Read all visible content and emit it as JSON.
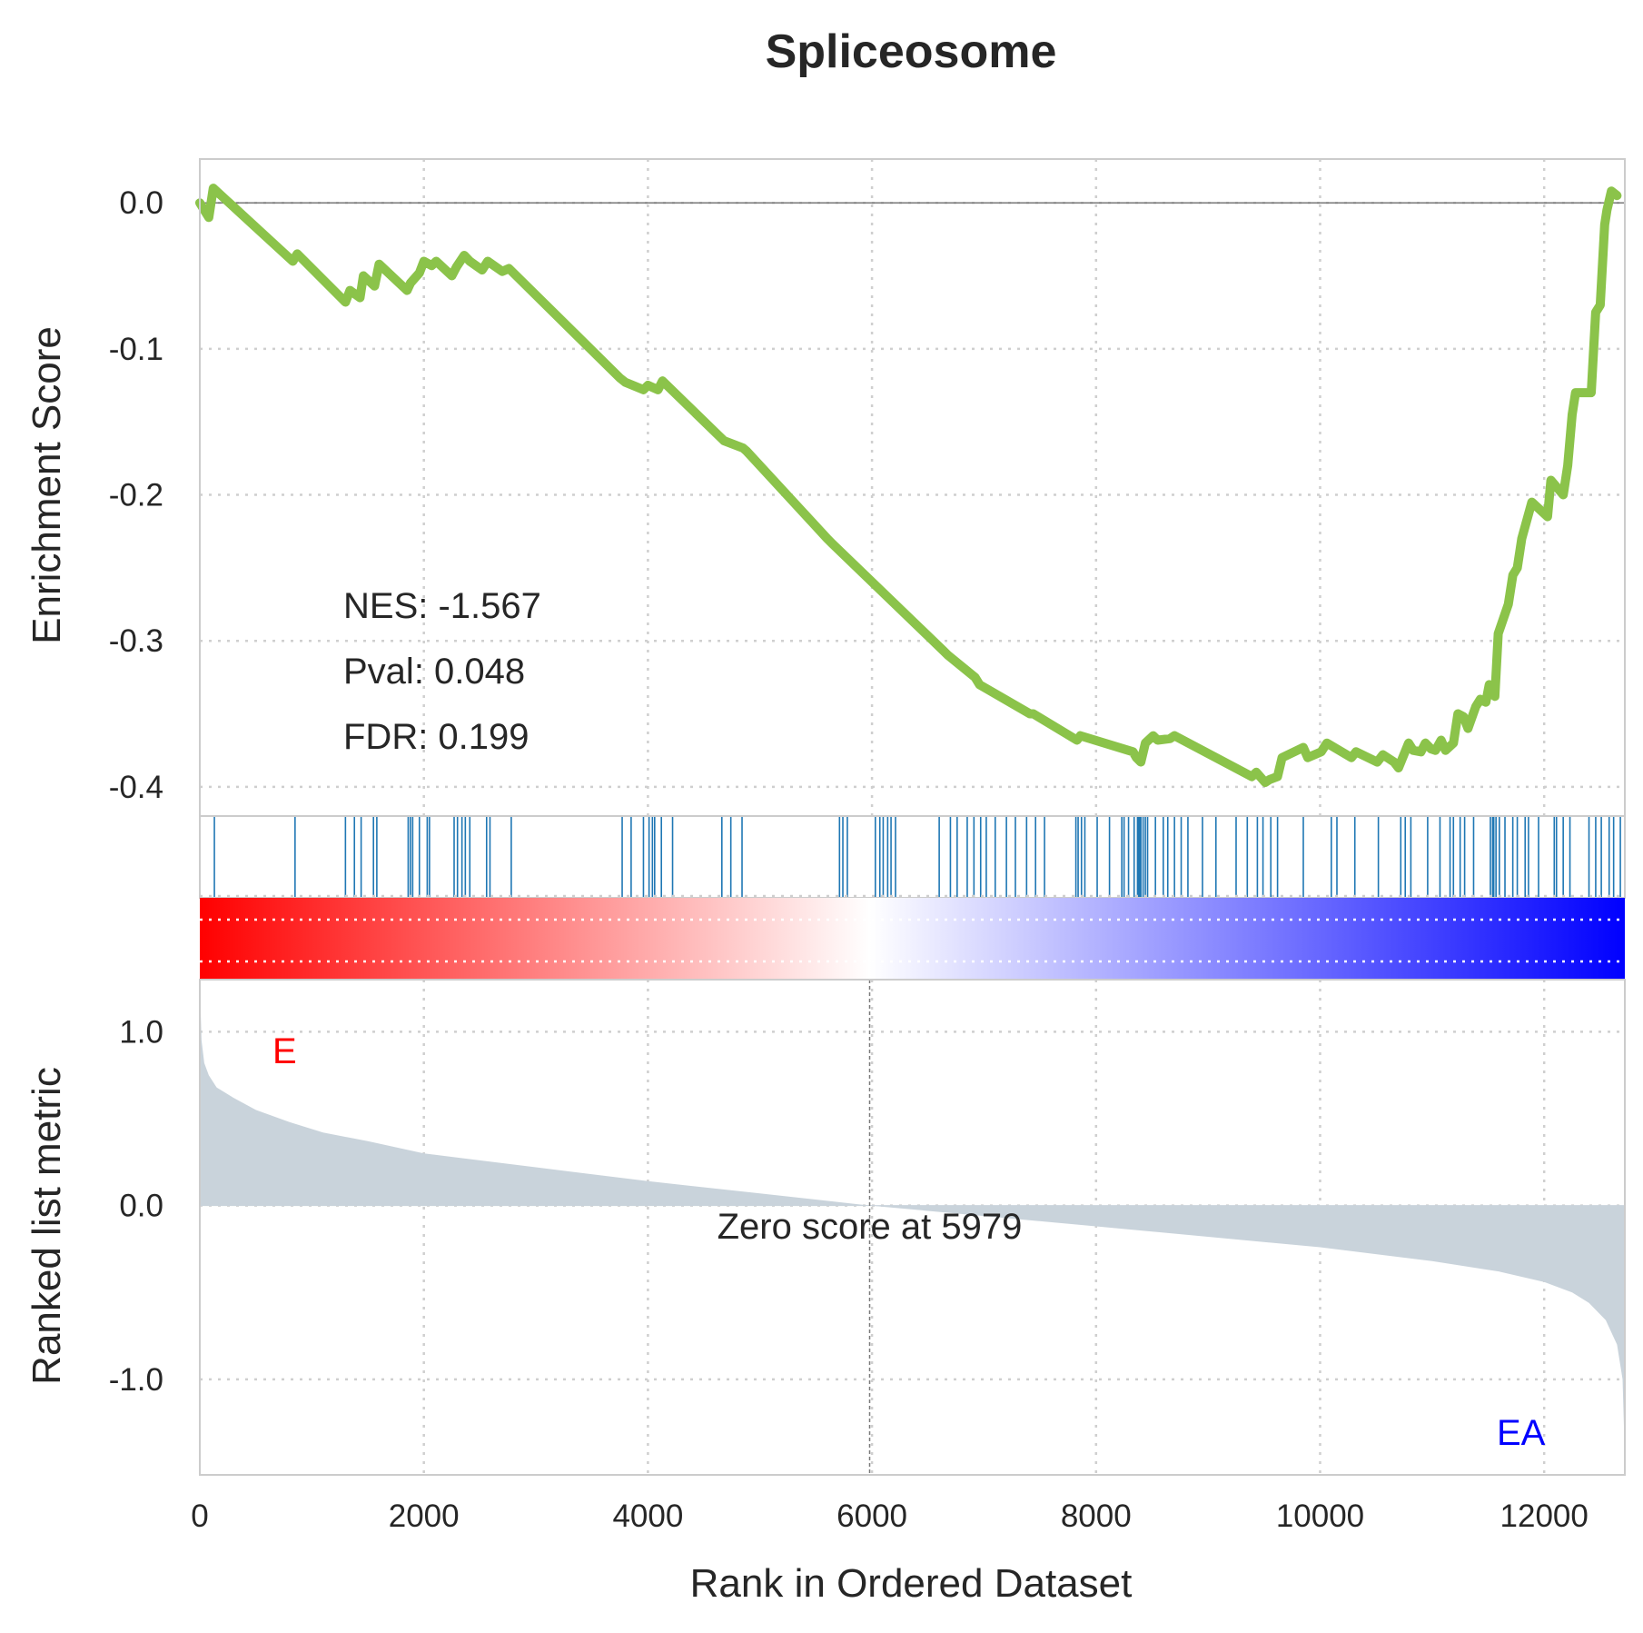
{
  "chart_data": {
    "type": "line",
    "title": "Spliceosome",
    "xlabel": "Rank in Ordered Dataset",
    "xlim": [
      0,
      12720
    ],
    "x_ticks": [
      "0",
      "2000",
      "4000",
      "6000",
      "8000",
      "10000",
      "12000"
    ],
    "x_tick_values": [
      0,
      2000,
      4000,
      6000,
      8000,
      10000,
      12000
    ],
    "grid": true,
    "panels": {
      "enrichment": {
        "ylabel": "Enrichment Score",
        "ylim": [
          -0.42,
          0.03
        ],
        "y_ticks": [
          "0.0",
          "-0.1",
          "-0.2",
          "-0.3",
          "-0.4"
        ],
        "y_tick_values": [
          0.0,
          -0.1,
          -0.2,
          -0.3,
          -0.4
        ],
        "line_color": "#8bc34a",
        "baseline": 0.0,
        "stats": [
          "NES: -1.567",
          "Pval: 0.048",
          "FDR: 0.199"
        ],
        "series": {
          "x": [
            0,
            80,
            120,
            830,
            870,
            1300,
            1340,
            1430,
            1460,
            1560,
            1600,
            1850,
            1880,
            1960,
            2000,
            2070,
            2110,
            2250,
            2290,
            2360,
            2410,
            2520,
            2570,
            2700,
            2760,
            3750,
            3800,
            3960,
            4000,
            4090,
            4130,
            4640,
            4680,
            4850,
            4880,
            5600,
            5640,
            6640,
            6680,
            6920,
            6960,
            7410,
            7440,
            7830,
            7860,
            8330,
            8360,
            8400,
            8440,
            8510,
            8550,
            8660,
            8700,
            9390,
            9430,
            9510,
            9550,
            9620,
            9660,
            9850,
            9890,
            10010,
            10060,
            10280,
            10320,
            10510,
            10560,
            10660,
            10700,
            10790,
            10830,
            10900,
            10940,
            10990,
            11030,
            11080,
            11120,
            11190,
            11230,
            11280,
            11320,
            11390,
            11430,
            11480,
            11510,
            11560,
            11590,
            11680,
            11720,
            11760,
            11800,
            11890,
            12030,
            12060,
            12170,
            12210,
            12250,
            12280,
            12420,
            12460,
            12500,
            12540,
            12560,
            12600,
            12650
          ],
          "y": [
            0.0,
            -0.01,
            0.01,
            -0.04,
            -0.035,
            -0.068,
            -0.06,
            -0.065,
            -0.05,
            -0.057,
            -0.042,
            -0.06,
            -0.055,
            -0.048,
            -0.04,
            -0.043,
            -0.04,
            -0.05,
            -0.044,
            -0.036,
            -0.04,
            -0.046,
            -0.04,
            -0.047,
            -0.045,
            -0.12,
            -0.123,
            -0.128,
            -0.125,
            -0.128,
            -0.122,
            -0.16,
            -0.163,
            -0.168,
            -0.17,
            -0.23,
            -0.233,
            -0.307,
            -0.31,
            -0.325,
            -0.33,
            -0.35,
            -0.35,
            -0.368,
            -0.365,
            -0.376,
            -0.38,
            -0.383,
            -0.37,
            -0.365,
            -0.368,
            -0.367,
            -0.365,
            -0.393,
            -0.39,
            -0.397,
            -0.395,
            -0.393,
            -0.38,
            -0.373,
            -0.38,
            -0.376,
            -0.37,
            -0.38,
            -0.376,
            -0.383,
            -0.378,
            -0.383,
            -0.387,
            -0.37,
            -0.375,
            -0.376,
            -0.37,
            -0.374,
            -0.375,
            -0.368,
            -0.375,
            -0.37,
            -0.35,
            -0.352,
            -0.36,
            -0.345,
            -0.34,
            -0.342,
            -0.33,
            -0.338,
            -0.295,
            -0.275,
            -0.255,
            -0.25,
            -0.23,
            -0.205,
            -0.215,
            -0.19,
            -0.2,
            -0.18,
            -0.145,
            -0.13,
            -0.13,
            -0.075,
            -0.07,
            -0.015,
            -0.005,
            0.008,
            0.005
          ]
        }
      },
      "hits": {
        "color": "#1f77b4",
        "ranks": [
          130,
          850,
          1300,
          1380,
          1440,
          1550,
          1580,
          1860,
          1880,
          1900,
          1960,
          2030,
          2050,
          2270,
          2300,
          2340,
          2370,
          2410,
          2560,
          2590,
          2780,
          3770,
          3850,
          3960,
          4010,
          4040,
          4060,
          4120,
          4220,
          4660,
          4740,
          4840,
          5710,
          5740,
          5780,
          6030,
          6070,
          6100,
          6140,
          6170,
          6210,
          6600,
          6700,
          6760,
          6850,
          6910,
          6970,
          7020,
          7100,
          7200,
          7280,
          7380,
          7460,
          7540,
          7820,
          7840,
          7870,
          7900,
          8010,
          8120,
          8230,
          8250,
          8290,
          8340,
          8370,
          8380,
          8390,
          8400,
          8420,
          8440,
          8460,
          8530,
          8600,
          8640,
          8700,
          8760,
          8820,
          8950,
          9070,
          9250,
          9350,
          9440,
          9490,
          9560,
          9620,
          9850,
          10100,
          10150,
          10310,
          10520,
          10720,
          10760,
          10810,
          10960,
          11070,
          11160,
          11190,
          11250,
          11290,
          11370,
          11520,
          11540,
          11550,
          11570,
          11600,
          11650,
          11720,
          11760,
          11830,
          11860,
          11950,
          12090,
          12110,
          12170,
          12230,
          12400,
          12460,
          12510,
          12580,
          12620,
          12680
        ]
      },
      "heatmap": {
        "left_color": "#ff0000",
        "mid_color": "#ffffff",
        "right_color": "#0000ff"
      },
      "ranked_metric": {
        "ylabel": "Ranked list metric",
        "ylim": [
          -1.55,
          1.3
        ],
        "y_ticks": [
          "1.0",
          "0.0",
          "-1.0"
        ],
        "y_tick_values": [
          1.0,
          0.0,
          -1.0
        ],
        "fill_color": "#c9d3db",
        "zero_cross_rank": 5979,
        "zero_label": "Zero score at 5979",
        "pos_label": "E",
        "neg_label": "EA",
        "pos_label_color": "#ff0000",
        "neg_label_color": "#0000ff",
        "series": {
          "x": [
            0,
            15,
            40,
            80,
            150,
            300,
            500,
            800,
            1100,
            1500,
            2000,
            3000,
            4000,
            5000,
            5979,
            7000,
            8000,
            9000,
            10000,
            11000,
            11600,
            12000,
            12250,
            12400,
            12550,
            12650,
            12700,
            12720
          ],
          "y": [
            1.28,
            0.95,
            0.82,
            0.75,
            0.68,
            0.62,
            0.55,
            0.48,
            0.42,
            0.37,
            0.3,
            0.22,
            0.14,
            0.07,
            0.0,
            -0.06,
            -0.12,
            -0.18,
            -0.24,
            -0.32,
            -0.38,
            -0.44,
            -0.5,
            -0.56,
            -0.66,
            -0.8,
            -1.0,
            -1.45
          ]
        }
      }
    }
  }
}
